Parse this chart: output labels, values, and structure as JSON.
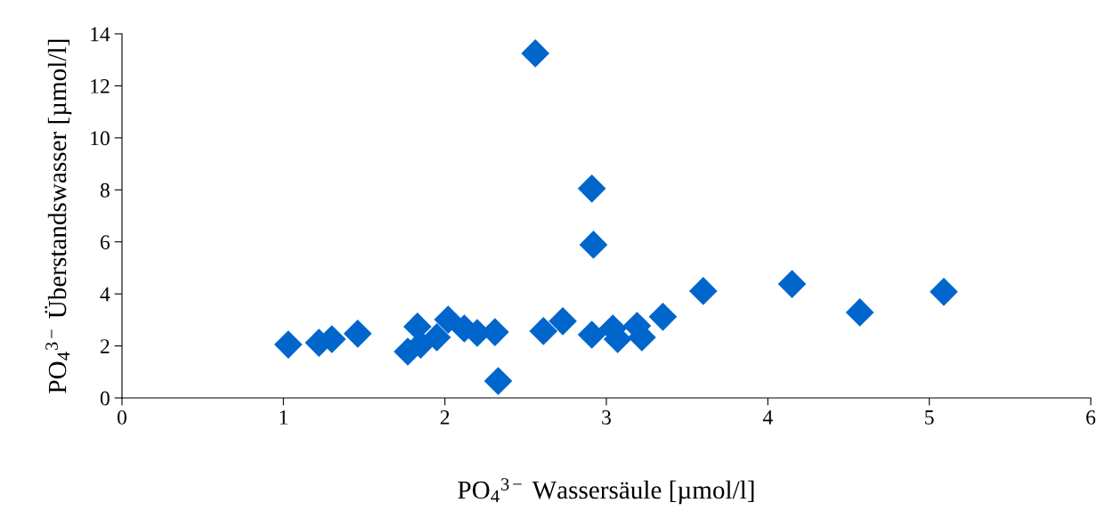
{
  "chart_data": {
    "type": "scatter",
    "xlabel": "PO$_{4}$$^{3−}$ Wassersäule [µmol/l]",
    "ylabel": "PO$_{4}$$^{3−}$ Überstandswasser [µmol/l]",
    "x": [
      1.03,
      1.22,
      1.3,
      1.46,
      1.77,
      1.83,
      1.85,
      1.95,
      2.02,
      2.12,
      2.2,
      2.31,
      2.33,
      2.56,
      2.61,
      2.73,
      2.91,
      2.92,
      2.91,
      3.04,
      3.07,
      3.19,
      3.22,
      3.35,
      3.6,
      4.15,
      4.57,
      5.09
    ],
    "series": [
      {
        "color": "#0066cc",
        "values": [
          2.05,
          2.12,
          2.26,
          2.47,
          1.78,
          2.74,
          2.05,
          2.33,
          3.01,
          2.67,
          2.5,
          2.53,
          0.65,
          13.25,
          2.57,
          2.95,
          8.05,
          5.89,
          2.43,
          2.67,
          2.26,
          2.77,
          2.33,
          3.12,
          4.11,
          4.38,
          3.29,
          4.08
        ]
      }
    ],
    "xlim": [
      0,
      6
    ],
    "xticks": [
      0,
      1,
      2,
      3,
      4,
      5,
      6
    ],
    "ylim": [
      0,
      14
    ],
    "yticks": [
      0,
      2,
      4,
      6,
      8,
      10,
      12,
      14
    ],
    "marker": "diamond",
    "grid": false,
    "legend": false
  }
}
